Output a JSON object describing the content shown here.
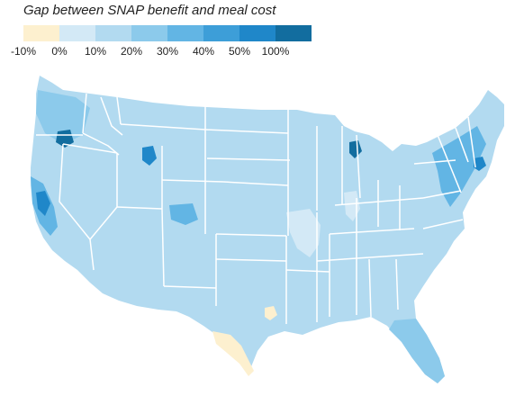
{
  "title": "Gap between SNAP benefit and meal cost",
  "legend": {
    "colors": [
      "#fdf0cf",
      "#d3e9f6",
      "#b2daf0",
      "#8ccaeb",
      "#62b5e4",
      "#3d9ed8",
      "#1f87c9",
      "#126d9f"
    ],
    "ticks": [
      "-10%",
      "0%",
      "10%",
      "20%",
      "30%",
      "40%",
      "50%",
      "100%"
    ]
  },
  "map": {
    "land_color": "#b2daf0",
    "border_color": "#ffffff",
    "regions": [
      {
        "name": "south-texas-negative-gap",
        "bin": 0
      },
      {
        "name": "central-texas-negative-gap",
        "bin": 0
      },
      {
        "name": "mississippi-valley-low-gap",
        "bin": 1
      },
      {
        "name": "indiana-low-gap",
        "bin": 1
      },
      {
        "name": "pacific-northwest-high-gap",
        "bin": 3
      },
      {
        "name": "california-coast-high-gap",
        "bin": 4
      },
      {
        "name": "colorado-front-range-high-gap",
        "bin": 4
      },
      {
        "name": "northeast-corridor-high-gap",
        "bin": 4
      },
      {
        "name": "florida-high-gap",
        "bin": 3
      },
      {
        "name": "portland-oregon-very-high-gap",
        "bin": 7
      },
      {
        "name": "bay-area-very-high-gap",
        "bin": 6
      },
      {
        "name": "wyoming-teton-very-high-gap",
        "bin": 6
      },
      {
        "name": "michigan-north-very-high-gap",
        "bin": 7
      },
      {
        "name": "boston-very-high-gap",
        "bin": 6
      }
    ]
  }
}
